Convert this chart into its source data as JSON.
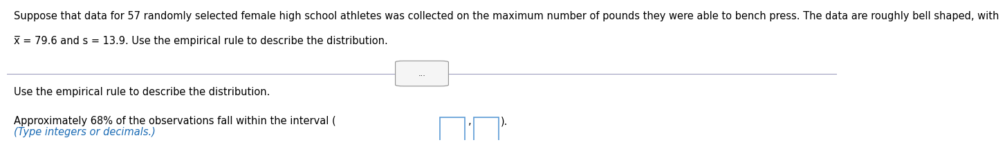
{
  "line1": "Suppose that data for 57 randomly selected female high school athletes was collected on the maximum number of pounds they were able to bench press. The data are roughly bell shaped, with",
  "line2": "x̅ = 79.6 and s = 13.9. Use the empirical rule to describe the distribution.",
  "divider_dots": "...",
  "question_text": "Use the empirical rule to describe the distribution.",
  "approx_text_before": "Approximately 68% of the observations fall within the interval (",
  "approx_text_after": ").",
  "hint_text": "(Type integers or decimals.)",
  "background_color": "#ffffff",
  "text_color": "#000000",
  "hint_color": "#1a6bb5",
  "divider_color": "#a0a0c0",
  "box_border_color": "#5b9bd5",
  "font_size_main": 10.5,
  "font_size_hint": 10.5
}
